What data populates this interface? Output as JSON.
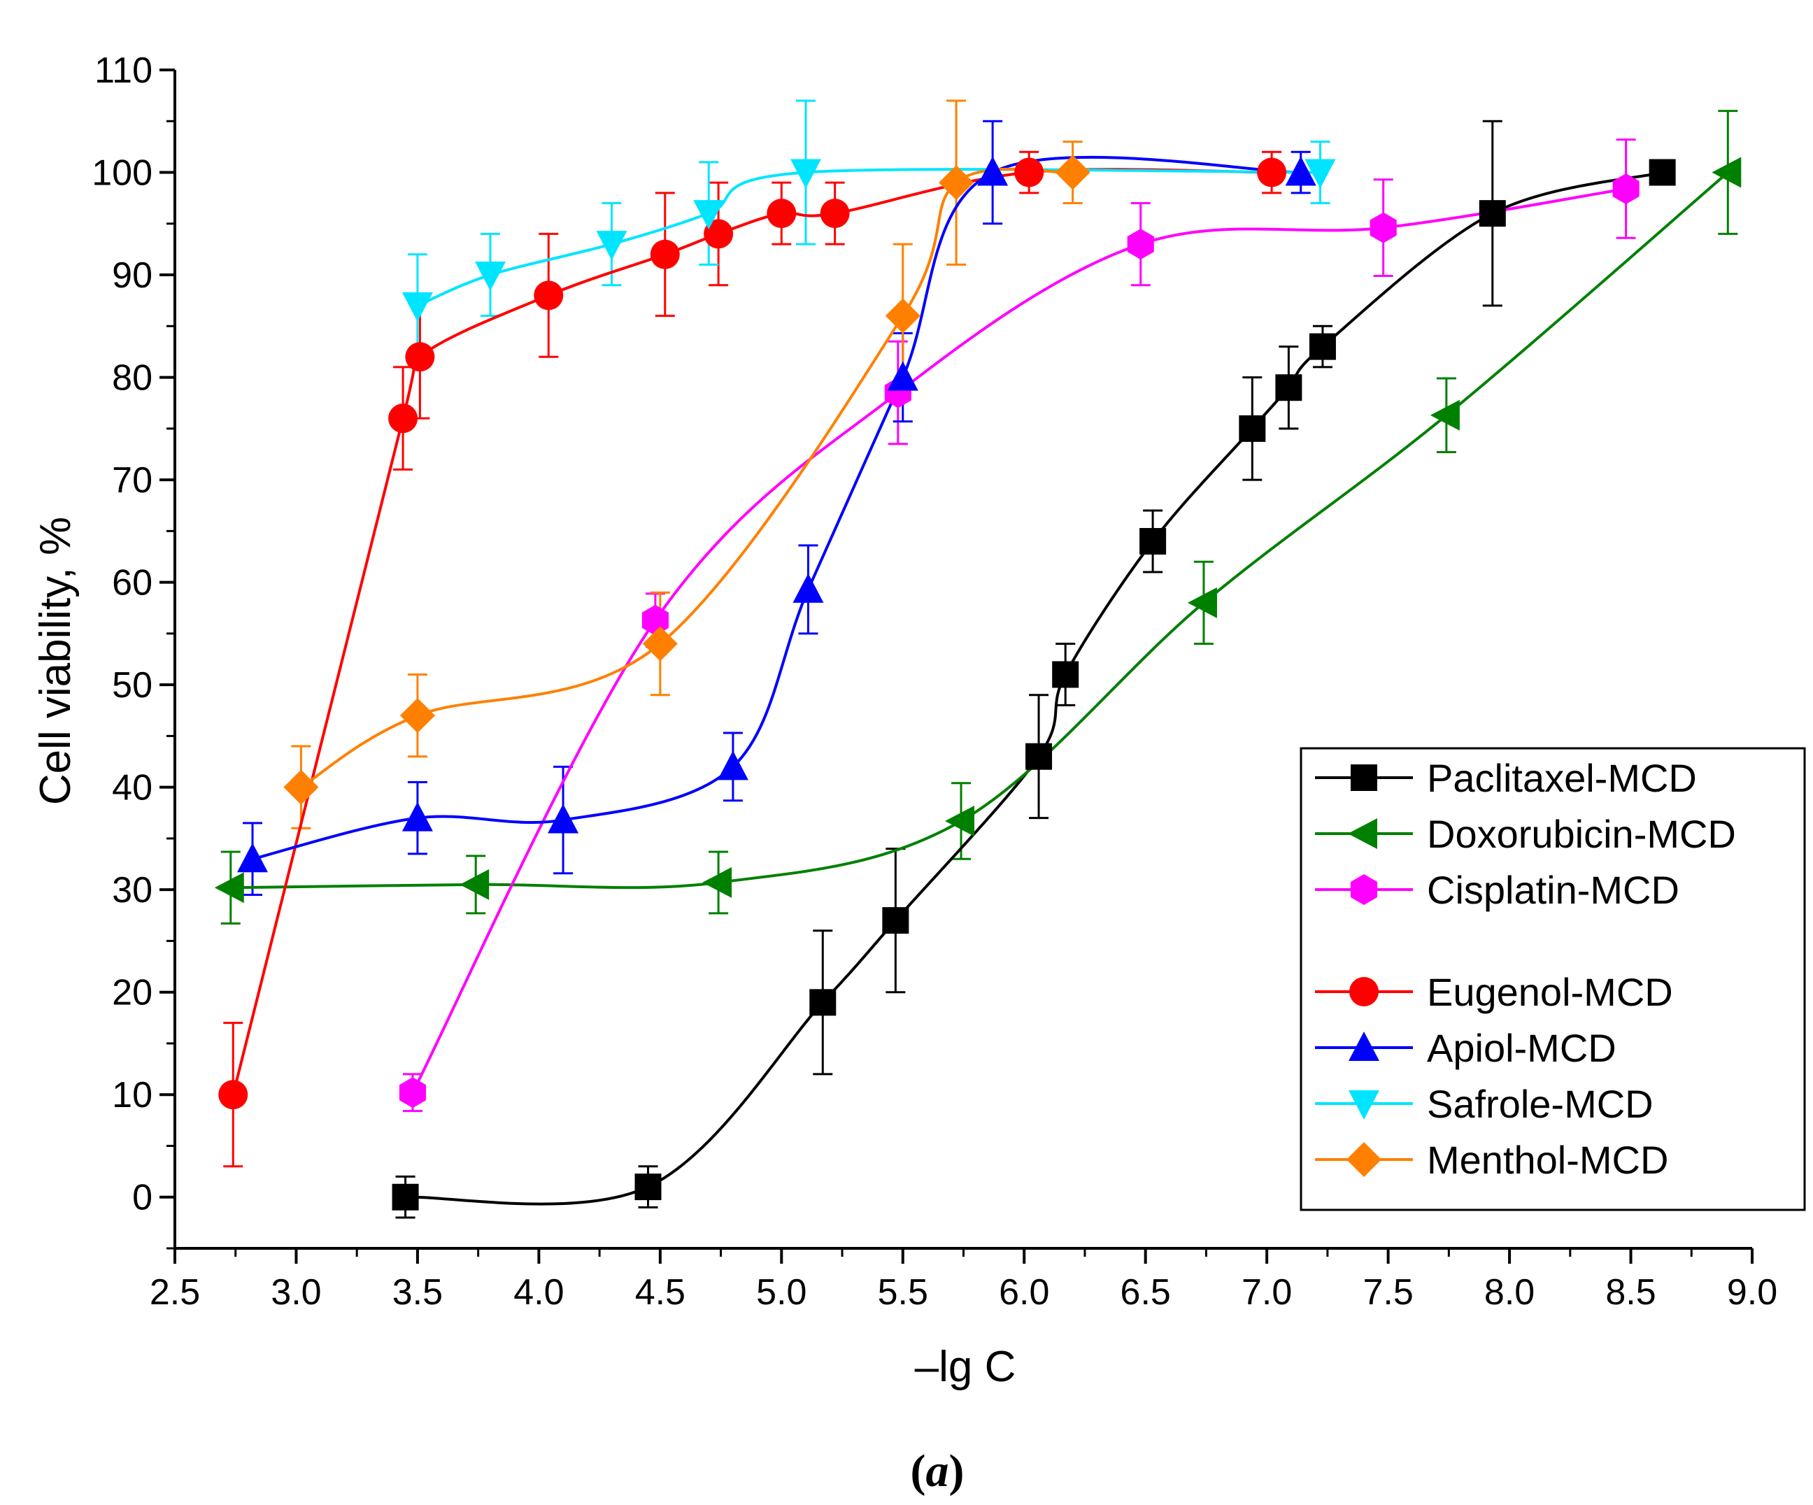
{
  "chart_data": {
    "type": "line",
    "title": "",
    "xlabel": "–lg C",
    "ylabel": "Cell viability, %",
    "panel_label": "(a)",
    "panel_letter": "a",
    "xlim": [
      2.5,
      9.0
    ],
    "ylim": [
      -5,
      110
    ],
    "xticks": [
      2.5,
      3.0,
      3.5,
      4.0,
      4.5,
      5.0,
      5.5,
      6.0,
      6.5,
      7.0,
      7.5,
      8.0,
      8.5,
      9.0
    ],
    "xtick_labels": [
      "2.5",
      "3.0",
      "3.5",
      "4.0",
      "4.5",
      "5.0",
      "5.5",
      "6.0",
      "6.5",
      "7.0",
      "7.5",
      "8.0",
      "8.5",
      "9.0"
    ],
    "yticks": [
      0,
      10,
      20,
      30,
      40,
      50,
      60,
      70,
      80,
      90,
      100,
      110
    ],
    "ytick_labels": [
      "0",
      "10",
      "20",
      "30",
      "40",
      "50",
      "60",
      "70",
      "80",
      "90",
      "100",
      "110"
    ],
    "grid": false,
    "legend_position": "bottom-right",
    "series": [
      {
        "name": "Paclitaxel-MCD",
        "color": "#000000",
        "marker": "square",
        "x": [
          3.45,
          4.45,
          5.17,
          5.47,
          6.06,
          6.17,
          6.53,
          6.94,
          7.09,
          7.23,
          7.93,
          8.63
        ],
        "y": [
          0,
          1,
          19,
          27,
          43,
          51,
          64,
          75,
          79,
          83,
          96,
          100
        ],
        "err": [
          2,
          2,
          7,
          7,
          6,
          3,
          3,
          5,
          4,
          2,
          9,
          0
        ]
      },
      {
        "name": "Doxorubicin-MCD",
        "color": "#008000",
        "marker": "triangle-left",
        "x": [
          2.73,
          3.74,
          4.74,
          5.74,
          6.74,
          7.74,
          8.9
        ],
        "y": [
          30.2,
          30.5,
          30.7,
          36.7,
          58,
          76.3,
          100
        ],
        "err": [
          3.5,
          2.8,
          3,
          3.7,
          4,
          3.6,
          6
        ]
      },
      {
        "name": "Cisplatin-MCD",
        "color": "#ff00ff",
        "marker": "hexagon",
        "x": [
          3.48,
          4.48,
          5.48,
          6.48,
          7.48,
          8.48
        ],
        "y": [
          10.2,
          56.3,
          78.5,
          93,
          94.6,
          98.4
        ],
        "err": [
          1.8,
          2.6,
          5,
          4,
          4.7,
          4.8
        ]
      },
      {
        "name": "Eugenol-MCD",
        "color": "#ff0000",
        "marker": "circle",
        "x": [
          2.74,
          3.44,
          3.51,
          4.04,
          4.52,
          4.74,
          5.0,
          5.22,
          6.02,
          7.02
        ],
        "y": [
          10,
          76,
          82,
          88,
          92,
          94,
          96,
          96,
          100,
          100
        ],
        "err": [
          7,
          5,
          6,
          6,
          6,
          5,
          3,
          3,
          2,
          2
        ]
      },
      {
        "name": "Apiol-MCD",
        "color": "#0000ff",
        "marker": "triangle-up",
        "x": [
          2.82,
          3.5,
          4.1,
          4.8,
          5.11,
          5.5,
          5.87,
          7.14
        ],
        "y": [
          33,
          37,
          36.8,
          42,
          59.3,
          80,
          100,
          100
        ],
        "err": [
          3.5,
          3.5,
          5.2,
          3.3,
          4.3,
          4.3,
          5,
          2
        ]
      },
      {
        "name": "Safrole-MCD",
        "color": "#00e5ff",
        "marker": "triangle-down",
        "x": [
          3.5,
          3.8,
          4.3,
          4.7,
          5.1,
          7.22
        ],
        "y": [
          87,
          90,
          93,
          96,
          100,
          100
        ],
        "err": [
          5,
          4,
          4,
          5,
          7,
          3
        ]
      },
      {
        "name": "Menthol-MCD",
        "color": "#ff8000",
        "marker": "diamond",
        "x": [
          3.02,
          3.5,
          4.5,
          5.5,
          5.72,
          6.2
        ],
        "y": [
          40,
          47,
          54,
          86,
          99,
          100
        ],
        "err": [
          4,
          4,
          5,
          7,
          8,
          3
        ]
      }
    ],
    "legend_groups": [
      [
        0,
        1,
        2
      ],
      [
        3,
        4,
        5,
        6
      ]
    ]
  }
}
